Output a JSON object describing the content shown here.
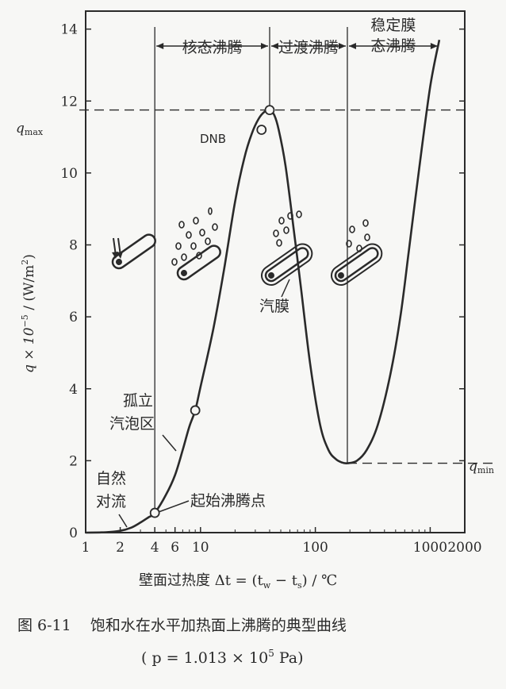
{
  "chart_data": {
    "type": "line",
    "xscale": "log",
    "xlim": [
      1,
      2000
    ],
    "ylim": [
      0,
      14.5
    ],
    "x_ticks": [
      {
        "v": 1,
        "label": "1"
      },
      {
        "v": 2,
        "label": "2"
      },
      {
        "v": 4,
        "label": "4"
      },
      {
        "v": 6,
        "label": "6"
      },
      {
        "v": 10,
        "label": "10"
      },
      {
        "v": 100,
        "label": "100"
      },
      {
        "v": 1000,
        "label": "1000"
      },
      {
        "v": 2000,
        "label": "2000"
      }
    ],
    "y_ticks": [
      0,
      2,
      4,
      6,
      8,
      10,
      12,
      14
    ],
    "y_tick_labels": [
      "0",
      "2",
      "4",
      "6",
      "8",
      "10",
      "12",
      "14"
    ],
    "xlabel": "壁面过热度 Δt = (t",
    "xlabel_sub1": "w",
    "xlabel_mid": " − t",
    "xlabel_sub2": "s",
    "xlabel_end": ") / ℃",
    "ylabel": "q × 10",
    "ylabel_exp": "−5",
    "ylabel_unit": " / (W/m",
    "ylabel_unit_exp": "2",
    "ylabel_end": ")",
    "series": [
      {
        "x": [
          1,
          1.5,
          2,
          2.5,
          3,
          3.5,
          4,
          5,
          6,
          7,
          8,
          9,
          10,
          13,
          16,
          20,
          24,
          28,
          32,
          36,
          40,
          44,
          48,
          55,
          65,
          75,
          90,
          110,
          130,
          150,
          170,
          190,
          230,
          280,
          350,
          450,
          550,
          650,
          800,
          1000,
          1200
        ],
        "y": [
          0,
          0.01,
          0.05,
          0.14,
          0.28,
          0.42,
          0.55,
          1.05,
          1.6,
          2.3,
          2.95,
          3.4,
          4.05,
          5.7,
          7.3,
          9.2,
          10.4,
          11.1,
          11.5,
          11.7,
          11.75,
          11.6,
          11.2,
          10.2,
          8.4,
          6.8,
          4.7,
          3.0,
          2.3,
          2.05,
          1.95,
          1.93,
          2.0,
          2.3,
          3.0,
          4.4,
          6.0,
          7.8,
          10.1,
          12.4,
          13.7
        ]
      }
    ],
    "points": [
      {
        "label": "起始沸腾点",
        "x": 4,
        "y": 0.55
      },
      {
        "label": "",
        "x": 9,
        "y": 3.4
      },
      {
        "label": "DNB",
        "x": 34,
        "y": 11.2
      },
      {
        "label": "",
        "x": 40,
        "y": 11.75
      }
    ],
    "regions": [
      {
        "label": "核态沸腾",
        "from": 4,
        "to": 40
      },
      {
        "label": "过渡沸腾",
        "from": 40,
        "to": 190
      },
      {
        "label_line1": "稳定膜",
        "label_line2": "态沸腾",
        "from": 190,
        "to": 1200
      }
    ],
    "hlines": [
      {
        "y": 11.75,
        "label": "q",
        "sub": "max",
        "side": "left"
      },
      {
        "y": 1.93,
        "label": "q",
        "sub": "min",
        "side": "right"
      }
    ],
    "annotations": {
      "natural_conv_line1": "自然",
      "natural_conv_line2": "对流",
      "isolated_line1": "孤立",
      "isolated_line2": "汽泡区",
      "onset": "起始沸腾点",
      "film": "汽膜",
      "dnb": "DNB"
    },
    "grid": false
  },
  "caption": {
    "line1": "图 6-11    饱和水在水平加热面上沸腾的典型曲线",
    "line2_pre": "( p = 1.013 × 10",
    "line2_exp": "5",
    "line2_post": " Pa)"
  }
}
